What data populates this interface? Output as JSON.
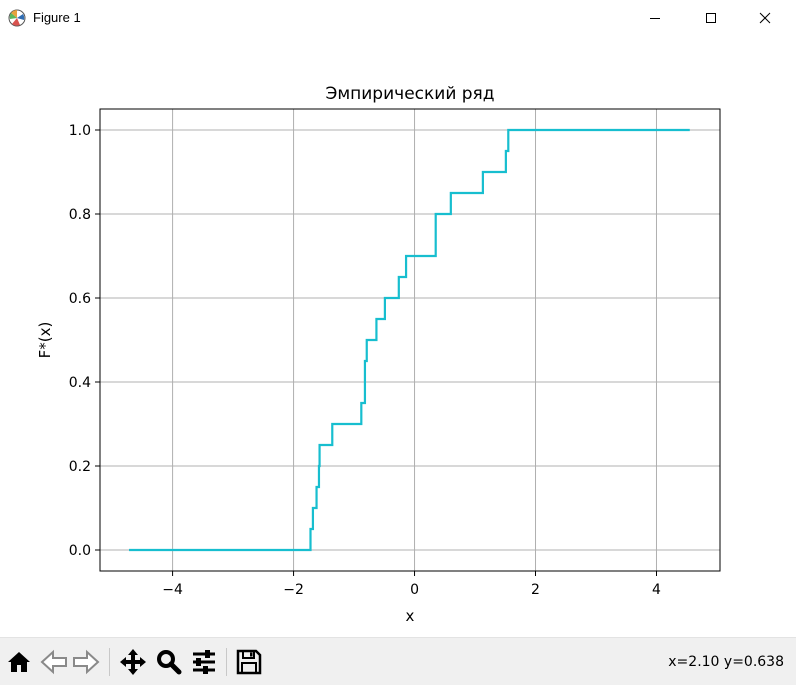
{
  "window": {
    "title": "Figure 1",
    "icon": "matplotlib-icon"
  },
  "toolbar": {
    "buttons": [
      "home-icon",
      "back-arrow-icon",
      "forward-arrow-icon",
      "pan-move-icon",
      "zoom-magnifier-icon",
      "configure-subplots-icon",
      "save-icon"
    ],
    "coordinates": "x=2.10 y=0.638"
  },
  "chart_data": {
    "type": "line",
    "drawstyle": "steps-post",
    "title": "Эмпирический ряд",
    "xlabel": "x",
    "ylabel": "F*(x)",
    "xlim": [
      -5.2,
      5.05
    ],
    "ylim": [
      -0.05,
      1.05
    ],
    "xticks": [
      -4,
      -2,
      0,
      2,
      4
    ],
    "xtick_labels": [
      "−4",
      "−2",
      "0",
      "2",
      "4"
    ],
    "yticks": [
      0.0,
      0.2,
      0.4,
      0.6,
      0.8,
      1.0
    ],
    "ytick_labels": [
      "0.0",
      "0.2",
      "0.4",
      "0.6",
      "0.8",
      "1.0"
    ],
    "grid": true,
    "color": "#17becf",
    "series": [
      {
        "x": [
          -4.72,
          -1.72,
          -1.68,
          -1.62,
          -1.58,
          -1.57,
          -1.36,
          -0.88,
          -0.82,
          -0.79,
          -0.63,
          -0.49,
          -0.26,
          -0.14,
          0.35,
          0.6,
          1.13,
          1.51,
          1.55,
          4.55
        ],
        "y": [
          0.0,
          0.05,
          0.1,
          0.15,
          0.2,
          0.25,
          0.3,
          0.35,
          0.45,
          0.5,
          0.55,
          0.6,
          0.65,
          0.7,
          0.8,
          0.85,
          0.9,
          0.95,
          1.0,
          1.0
        ]
      }
    ]
  }
}
